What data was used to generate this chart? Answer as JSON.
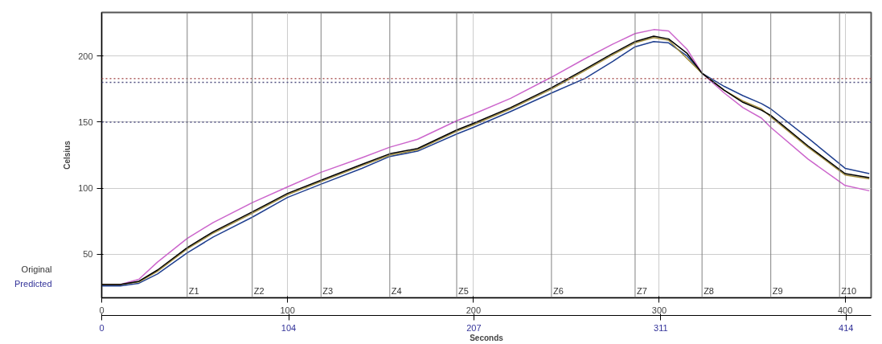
{
  "chart_data": {
    "type": "line",
    "xlabel": "Seconds",
    "ylabel": "Celsius",
    "annotations": [
      "Original",
      "Predicted"
    ],
    "x": [
      0,
      10,
      20,
      30,
      46,
      60,
      81,
      100,
      118,
      140,
      155,
      170,
      191,
      200,
      220,
      242,
      260,
      275,
      287,
      297,
      305,
      315,
      323,
      335,
      345,
      355,
      360,
      380,
      400,
      413
    ],
    "series": [
      {
        "color": "#cc66cc",
        "values": [
          27,
          27,
          31,
          44,
          62,
          74,
          89,
          101,
          112,
          123,
          131,
          137,
          151,
          156,
          168,
          184,
          198,
          209,
          217,
          220,
          219,
          205,
          187,
          172,
          161,
          153,
          146,
          122,
          102,
          98
        ]
      },
      {
        "color": "#1f3f8f",
        "values": [
          26,
          26,
          28,
          35,
          51,
          63,
          78,
          93,
          103,
          115,
          124,
          128,
          141,
          146,
          158,
          172,
          183,
          196,
          207,
          211,
          210,
          200,
          187,
          177,
          170,
          164,
          160,
          138,
          115,
          111
        ]
      },
      {
        "color": "#a08c3c",
        "values": [
          27,
          27,
          29,
          37,
          54,
          66,
          81,
          95,
          105,
          117,
          125,
          129,
          143,
          148,
          160,
          175,
          189,
          201,
          210,
          214,
          212,
          198,
          187,
          174,
          166,
          160,
          154,
          131,
          110,
          107
        ]
      },
      {
        "color": "#000000",
        "values": [
          27,
          27,
          29.5,
          38,
          55,
          67,
          82,
          96,
          106,
          118,
          126,
          130,
          144,
          149,
          161,
          176,
          190,
          202,
          211,
          215,
          213,
          202,
          187,
          174,
          165,
          159,
          155,
          132,
          111,
          108
        ]
      }
    ],
    "xlim": [
      0,
      414
    ],
    "ylim": [
      17,
      233
    ],
    "xticks": [
      0,
      100,
      200,
      300,
      400
    ],
    "yticks": [
      50,
      100,
      150,
      200
    ],
    "x2lim": [
      0,
      428
    ],
    "x2ticks": [
      0,
      104,
      207,
      311,
      414
    ],
    "grid": true,
    "ref_lines": [
      {
        "axis": "y",
        "value": 183,
        "color": "#b06060",
        "line_style": "dotted"
      },
      {
        "axis": "y",
        "value": 180,
        "color": "#505080",
        "line_style": "dotted"
      },
      {
        "axis": "y",
        "value": 150,
        "color": "#505080",
        "line_style": "dotted"
      },
      {
        "axis": "x",
        "value": 46,
        "label": "Z1",
        "color": "#808080",
        "line_style": "solid"
      },
      {
        "axis": "x",
        "value": 81,
        "label": "Z2",
        "color": "#808080",
        "line_style": "solid"
      },
      {
        "axis": "x",
        "value": 118,
        "label": "Z3",
        "color": "#808080",
        "line_style": "solid"
      },
      {
        "axis": "x",
        "value": 155,
        "label": "Z4",
        "color": "#808080",
        "line_style": "solid"
      },
      {
        "axis": "x",
        "value": 191,
        "label": "Z5",
        "color": "#808080",
        "line_style": "solid"
      },
      {
        "axis": "x",
        "value": 242,
        "label": "Z6",
        "color": "#808080",
        "line_style": "solid"
      },
      {
        "axis": "x",
        "value": 287,
        "label": "Z7",
        "color": "#808080",
        "line_style": "solid"
      },
      {
        "axis": "x",
        "value": 323,
        "label": "Z8",
        "color": "#808080",
        "line_style": "solid"
      },
      {
        "axis": "x",
        "value": 360,
        "label": "Z9",
        "color": "#808080",
        "line_style": "solid"
      },
      {
        "axis": "x",
        "value": 397,
        "label": "Z10",
        "color": "#808080",
        "line_style": "solid"
      }
    ]
  }
}
